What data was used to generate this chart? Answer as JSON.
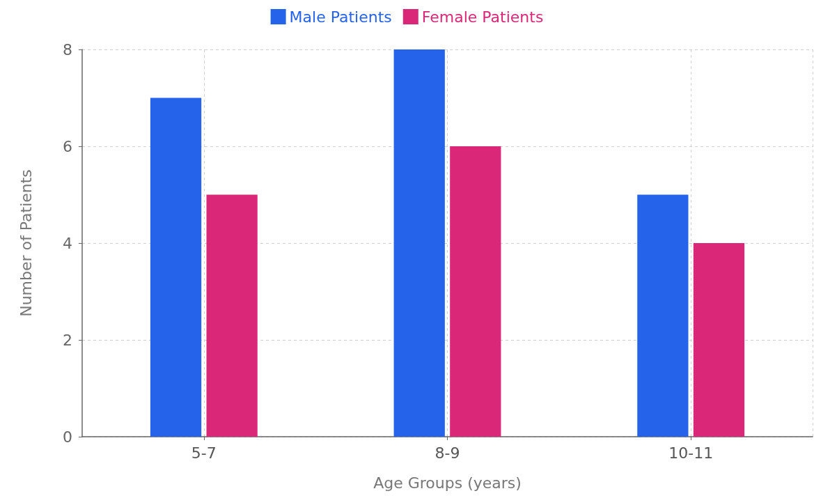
{
  "chart_data": {
    "type": "bar",
    "xlabel": "Age Groups (years)",
    "ylabel": "Number of Patients",
    "categories": [
      "5-7",
      "8-9",
      "10-11"
    ],
    "series": [
      {
        "name": "Male Patients",
        "color": "#2563eb",
        "values": [
          7,
          8,
          5
        ]
      },
      {
        "name": "Female Patients",
        "color": "#db2777",
        "values": [
          5,
          6,
          4
        ]
      }
    ],
    "ylim": [
      0,
      8
    ],
    "yticks": [
      0,
      2,
      4,
      6,
      8
    ],
    "grid": true,
    "legend": "top"
  }
}
